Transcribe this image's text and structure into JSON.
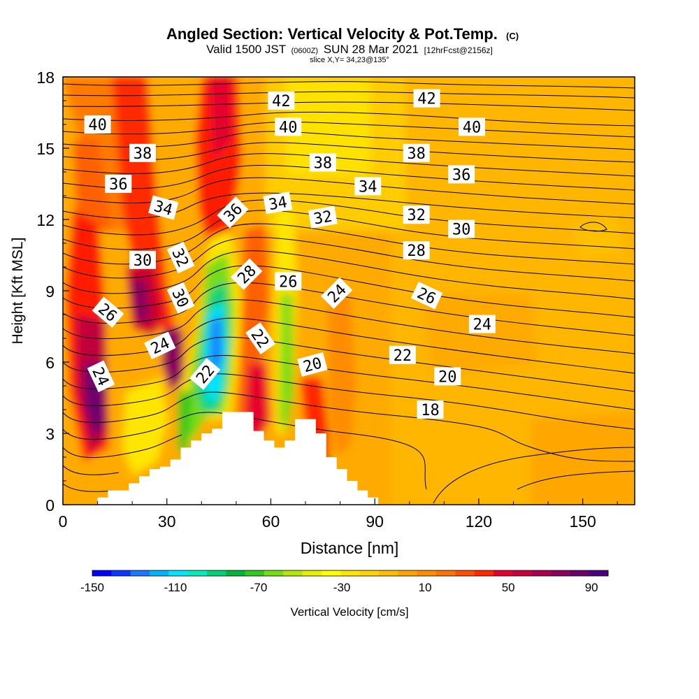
{
  "header": {
    "title_main": "Angled Section: Vertical Velocity & Pot.Temp.",
    "title_copyright": "(C)",
    "valid_prefix": "Valid 1500 JST",
    "valid_utc": "(0600Z)",
    "valid_date": "SUN 28 Mar 2021",
    "valid_fcst": "[12hrFcst@2156z]",
    "slice": "slice X,Y= 34,23@135°"
  },
  "chart_data": {
    "type": "heatmap",
    "xlabel": "Distance [nm]",
    "ylabel": "Height [Kft MSL]",
    "xlim": [
      0,
      165
    ],
    "ylim": [
      0,
      18
    ],
    "x_ticks": [
      "0",
      "30",
      "60",
      "90",
      "120",
      "150"
    ],
    "y_ticks": [
      "0",
      "3",
      "6",
      "9",
      "12",
      "15",
      "18"
    ],
    "colorbar": {
      "label": "Vertical Velocity [cm/s]",
      "range": [
        -150,
        98
      ],
      "tick_labels": [
        "-150",
        "-110",
        "-70",
        "-30",
        "10",
        "50",
        "90"
      ],
      "colors": [
        "#0000ff",
        "#0a37ff",
        "#1e78ff",
        "#00b4ff",
        "#00e6ff",
        "#00ebbe",
        "#00d278",
        "#00b43c",
        "#32c81e",
        "#78dc14",
        "#b4e60a",
        "#e6f000",
        "#ffff00",
        "#ffe600",
        "#ffd200",
        "#ffbe00",
        "#ffa500",
        "#ff8c00",
        "#ff7300",
        "#ff5000",
        "#ff2800",
        "#e6002d",
        "#c8003c",
        "#aa0050",
        "#8c005f",
        "#6e006e",
        "#4b0082"
      ]
    },
    "isentrope_labels": [
      {
        "text": "40",
        "x": 10,
        "y": 16.0,
        "angle": 0
      },
      {
        "text": "38",
        "x": 23,
        "y": 14.8,
        "angle": 0
      },
      {
        "text": "36",
        "x": 16,
        "y": 13.5,
        "angle": 0
      },
      {
        "text": "34",
        "x": 29,
        "y": 12.5,
        "angle": 15
      },
      {
        "text": "30",
        "x": 23,
        "y": 10.3,
        "angle": 0
      },
      {
        "text": "32",
        "x": 34,
        "y": 10.4,
        "angle": 65
      },
      {
        "text": "30",
        "x": 34,
        "y": 8.7,
        "angle": 65
      },
      {
        "text": "26",
        "x": 13,
        "y": 8.1,
        "angle": 40
      },
      {
        "text": "24",
        "x": 28,
        "y": 6.7,
        "angle": -25
      },
      {
        "text": "24",
        "x": 11,
        "y": 5.4,
        "angle": 65
      },
      {
        "text": "22",
        "x": 41,
        "y": 5.5,
        "angle": -50
      },
      {
        "text": "36",
        "x": 49,
        "y": 12.3,
        "angle": -45
      },
      {
        "text": "28",
        "x": 53,
        "y": 9.7,
        "angle": -45
      },
      {
        "text": "34",
        "x": 62,
        "y": 12.7,
        "angle": -10
      },
      {
        "text": "26",
        "x": 65,
        "y": 9.4,
        "angle": 0
      },
      {
        "text": "22",
        "x": 57,
        "y": 7.0,
        "angle": 55
      },
      {
        "text": "20",
        "x": 72,
        "y": 5.9,
        "angle": -15
      },
      {
        "text": "24",
        "x": 79,
        "y": 8.9,
        "angle": -45
      },
      {
        "text": "42",
        "x": 63,
        "y": 17.0,
        "angle": 0
      },
      {
        "text": "40",
        "x": 65,
        "y": 15.9,
        "angle": 0
      },
      {
        "text": "38",
        "x": 75,
        "y": 14.4,
        "angle": 0
      },
      {
        "text": "34",
        "x": 88,
        "y": 13.4,
        "angle": 0
      },
      {
        "text": "32",
        "x": 75,
        "y": 12.1,
        "angle": -10
      },
      {
        "text": "42",
        "x": 105,
        "y": 17.1,
        "angle": 0
      },
      {
        "text": "40",
        "x": 118,
        "y": 15.9,
        "angle": 0
      },
      {
        "text": "38",
        "x": 102,
        "y": 14.8,
        "angle": 0
      },
      {
        "text": "36",
        "x": 115,
        "y": 13.9,
        "angle": 0
      },
      {
        "text": "32",
        "x": 102,
        "y": 12.2,
        "angle": 0
      },
      {
        "text": "30",
        "x": 115,
        "y": 11.6,
        "angle": 0
      },
      {
        "text": "28",
        "x": 102,
        "y": 10.7,
        "angle": 0
      },
      {
        "text": "26",
        "x": 105,
        "y": 8.8,
        "angle": 25
      },
      {
        "text": "24",
        "x": 121,
        "y": 7.6,
        "angle": 0
      },
      {
        "text": "22",
        "x": 98,
        "y": 6.3,
        "angle": 0
      },
      {
        "text": "20",
        "x": 111,
        "y": 5.4,
        "angle": 0
      },
      {
        "text": "18",
        "x": 106,
        "y": 4.0,
        "angle": 0
      }
    ],
    "terrain_blocked_profile": [
      [
        10,
        0.3
      ],
      [
        13,
        0.6
      ],
      [
        16,
        0.6
      ],
      [
        19,
        0.9
      ],
      [
        22,
        1.2
      ],
      [
        25,
        1.5
      ],
      [
        28,
        1.6
      ],
      [
        31,
        1.9
      ],
      [
        34,
        2.4
      ],
      [
        37,
        2.7
      ],
      [
        40,
        3.0
      ],
      [
        43,
        3.2
      ],
      [
        46,
        3.9
      ],
      [
        49,
        3.9
      ],
      [
        52,
        3.9
      ],
      [
        55,
        3.1
      ],
      [
        58,
        2.7
      ],
      [
        61,
        2.4
      ],
      [
        64,
        2.7
      ],
      [
        67,
        3.6
      ],
      [
        70,
        3.6
      ],
      [
        73,
        3.0
      ],
      [
        76,
        2.0
      ],
      [
        79,
        1.5
      ],
      [
        82,
        1.0
      ],
      [
        85,
        0.6
      ],
      [
        88,
        0.3
      ],
      [
        91,
        0.3
      ]
    ]
  }
}
